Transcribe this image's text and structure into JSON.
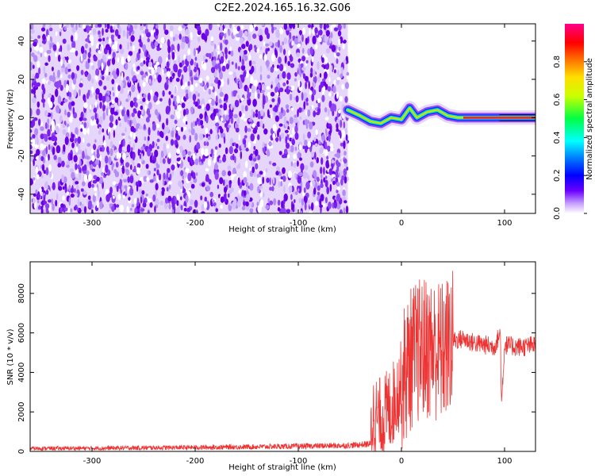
{
  "title": "C2E2.2024.165.16.32.G06",
  "chart_data": [
    {
      "type": "heatmap",
      "xlabel": "Height of straight line (km)",
      "ylabel": "Frequency (Hz)",
      "xlim": [
        -360,
        130
      ],
      "ylim": [
        -50,
        49
      ],
      "xticks": [
        -300,
        -200,
        -100,
        0,
        100
      ],
      "yticks": [
        -40,
        -20,
        0,
        20,
        40
      ],
      "noise_region_x": [
        -360,
        -52
      ],
      "signal_track": {
        "x": [
          -52,
          -40,
          -30,
          -20,
          -10,
          0,
          8,
          15,
          25,
          35,
          45,
          55,
          65,
          80,
          95,
          110,
          130
        ],
        "y": [
          4,
          1,
          -2,
          -3,
          0,
          -1,
          5,
          0,
          3,
          4,
          1,
          0,
          0,
          0,
          0,
          0,
          0
        ]
      },
      "colorbar": {
        "label": "Normalized spectral amplitude",
        "range": [
          0.0,
          1.0
        ],
        "ticks": [
          0.0,
          0.2,
          0.4,
          0.6,
          0.8
        ]
      }
    },
    {
      "type": "line",
      "xlabel": "Height of straight line (km)",
      "ylabel": "SNR (10 * v/v)",
      "xlim": [
        -360,
        130
      ],
      "ylim": [
        0,
        9600
      ],
      "xticks": [
        -300,
        -200,
        -100,
        0,
        100
      ],
      "yticks": [
        0,
        2000,
        4000,
        6000,
        8000
      ],
      "color": "#ee3333",
      "series": [
        {
          "x": [
            -360,
            -300,
            -200,
            -100,
            -50,
            -30,
            -28,
            -20,
            -10,
            0,
            10,
            20,
            30,
            40,
            50,
            60,
            70,
            80,
            90,
            96,
            97,
            100,
            110,
            120,
            130
          ],
          "y": [
            150,
            160,
            200,
            260,
            300,
            380,
            1800,
            1600,
            2200,
            3500,
            4800,
            5200,
            5200,
            5000,
            5600,
            5700,
            5500,
            5400,
            5300,
            6000,
            2300,
            5400,
            5300,
            5300,
            5400
          ]
        }
      ]
    }
  ]
}
